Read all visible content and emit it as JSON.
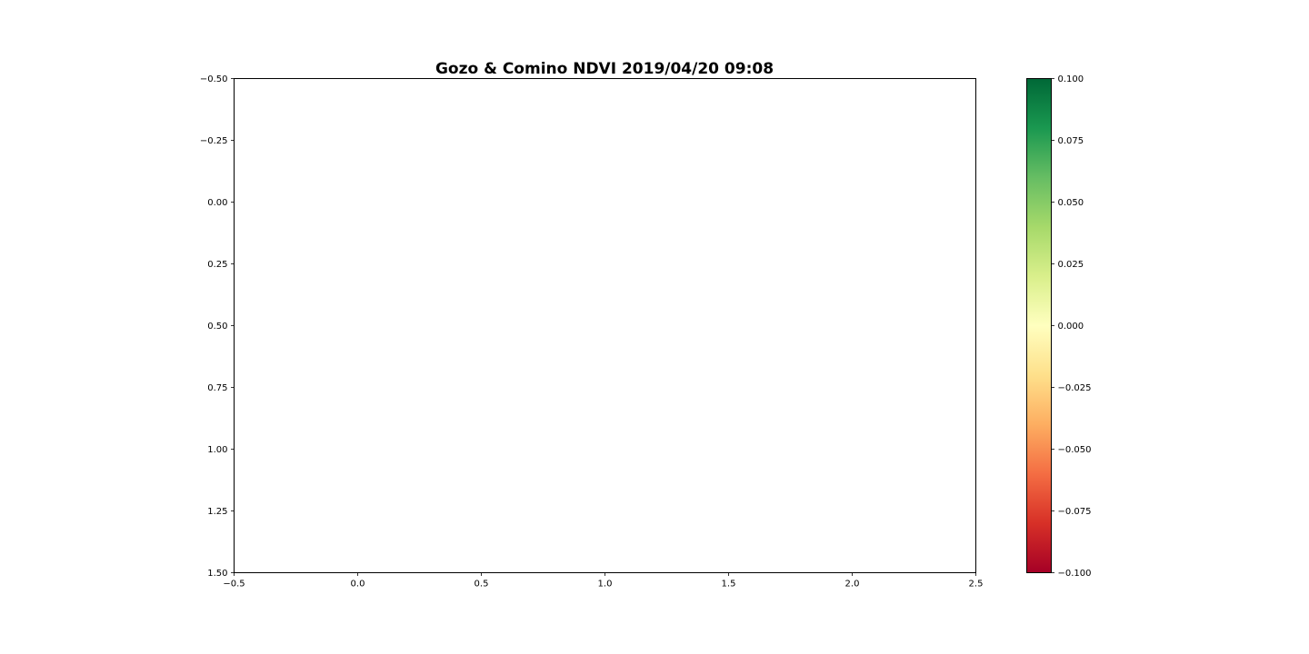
{
  "chart_data": {
    "type": "heatmap",
    "title": "Gozo & Comino NDVI 2019/04/20 09:08",
    "xlabel": "",
    "ylabel": "",
    "xlim": [
      -0.5,
      2.5
    ],
    "ylim": [
      -0.5,
      1.5
    ],
    "y_inverted": true,
    "grid": false,
    "values": [],
    "x_ticks": [
      -0.5,
      0.0,
      0.5,
      1.0,
      1.5,
      2.0,
      2.5
    ],
    "x_tick_labels": [
      "−0.5",
      "0.0",
      "0.5",
      "1.0",
      "1.5",
      "2.0",
      "2.5"
    ],
    "y_ticks": [
      -0.5,
      -0.25,
      0.0,
      0.25,
      0.5,
      0.75,
      1.0,
      1.25,
      1.5
    ],
    "y_tick_labels": [
      "−0.50",
      "−0.25",
      "0.00",
      "0.25",
      "0.50",
      "0.75",
      "1.00",
      "1.25",
      "1.50"
    ],
    "colorbar": {
      "colormap": "RdYlGn",
      "vmin": -0.1,
      "vmax": 0.1,
      "ticks": [
        0.1,
        0.075,
        0.05,
        0.025,
        0.0,
        -0.025,
        -0.05,
        -0.075,
        -0.1
      ],
      "tick_labels": [
        "0.100",
        "0.075",
        "0.050",
        "0.025",
        "0.000",
        "−0.025",
        "−0.050",
        "−0.075",
        "−0.100"
      ],
      "colors": {
        "bottom": "#a50026",
        "low": "#f46d43",
        "mid": "#ffffbf",
        "high": "#66bd63",
        "top": "#006837"
      }
    }
  }
}
